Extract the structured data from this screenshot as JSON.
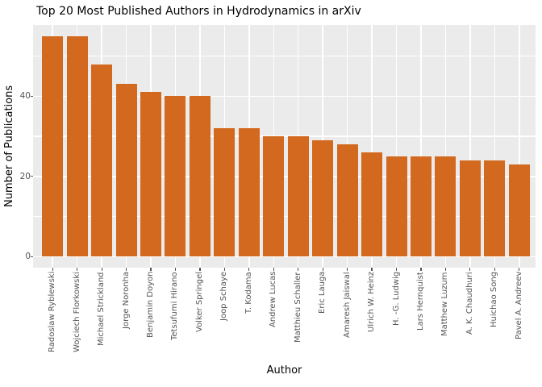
{
  "chart_data": {
    "type": "bar",
    "title": "Top 20 Most Published Authors in Hydrodynamics in arXiv",
    "xlabel": "Author",
    "ylabel": "Number of Publications",
    "categories": [
      "Radoslaw Ryblewski",
      "Wojciech Florkowski",
      "Michael Strickland",
      "Jorge Noronha",
      "Benjamin Doyon",
      "Tetsufumi Hirano",
      "Volker Springel",
      "Joop Schaye",
      "T. Kodama",
      "Andrew Lucas",
      "Matthieu Schaller",
      "Eric Lauga",
      "Amaresh Jaiswal",
      "Ulrich W. Heinz",
      "H. -G. Ludwig",
      "Lars Hernquist",
      "Matthew Luzum",
      "A. K. Chaudhuri",
      "Huichao Song",
      "Pavel A. Andreev"
    ],
    "values": [
      55,
      55,
      48,
      43,
      41,
      40,
      40,
      32,
      32,
      30,
      30,
      29,
      28,
      26,
      25,
      25,
      25,
      24,
      24,
      23
    ],
    "yticks": [
      0,
      20,
      40
    ],
    "gridlines_y": [
      0,
      10,
      20,
      30,
      40,
      50
    ],
    "ylim": [
      -2.75,
      57.75
    ],
    "grid": "on",
    "legend": "none",
    "orientation": "vertical",
    "colors": {
      "bar": "#D2691E",
      "panel_bg": "#EBEBEB",
      "gridline": "#FFFFFF",
      "tick_text": "#555555",
      "axis_text": "#000000",
      "figure_bg": "#FFFFFF"
    }
  }
}
